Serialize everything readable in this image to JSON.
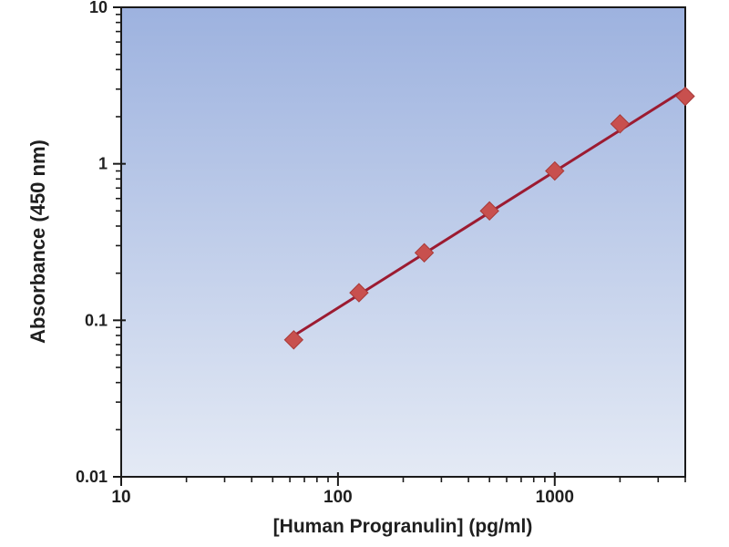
{
  "chart_data": {
    "type": "scatter",
    "title": "",
    "xlabel": "[Human Progranulin] (pg/ml)",
    "ylabel": "Absorbance (450 nm)",
    "x_scale": "log",
    "y_scale": "log",
    "xlim": [
      10,
      4000
    ],
    "ylim": [
      0.01,
      10
    ],
    "grid": false,
    "legend": false,
    "x_major_ticks": [
      {
        "value": 10,
        "label": "10"
      },
      {
        "value": 100,
        "label": "100"
      },
      {
        "value": 1000,
        "label": "1000"
      }
    ],
    "y_major_ticks": [
      {
        "value": 10,
        "label": "10"
      },
      {
        "value": 1,
        "label": "1"
      },
      {
        "value": 0.1,
        "label": "0.1"
      },
      {
        "value": 0.01,
        "label": "0.01"
      }
    ],
    "series": [
      {
        "name": "standard-curve",
        "marker": "diamond",
        "has_trendline": true,
        "points": [
          {
            "x": 62.5,
            "y": 0.075
          },
          {
            "x": 125,
            "y": 0.15
          },
          {
            "x": 250,
            "y": 0.27
          },
          {
            "x": 500,
            "y": 0.5
          },
          {
            "x": 1000,
            "y": 0.9
          },
          {
            "x": 2000,
            "y": 1.8
          },
          {
            "x": 4000,
            "y": 2.7
          }
        ]
      }
    ],
    "colors": {
      "marker_fill": "#C8504E",
      "marker_stroke": "#A83A38",
      "trendline": "#9C1B31",
      "axis": "#1a1a1a",
      "text": "#1f1f1f",
      "plot_bg_top": "#9DB2DF",
      "plot_bg_bottom": "#E4EAF5"
    }
  }
}
